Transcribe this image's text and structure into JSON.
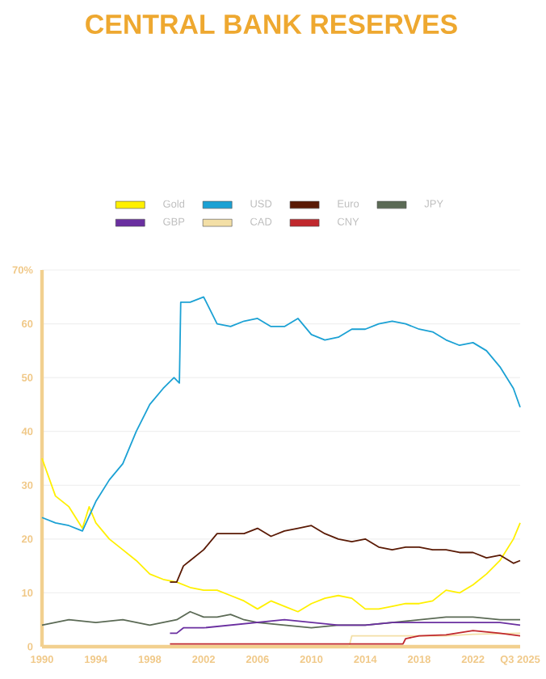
{
  "chart_data": {
    "type": "line",
    "title": "CENTRAL BANK RESERVES",
    "xlim": [
      1990,
      2025.5
    ],
    "ylim": [
      0,
      70
    ],
    "xticks": [
      1990,
      1994,
      1998,
      2002,
      2006,
      2010,
      2014,
      2018,
      2022,
      {
        "value": 2025.5,
        "label": "Q3 2025"
      }
    ],
    "yticks": [
      0,
      10,
      20,
      30,
      40,
      50,
      60,
      {
        "value": 70,
        "label": "70%"
      }
    ],
    "grid": "y",
    "legend": "top",
    "marker": "none",
    "line_style": "solid",
    "series": [
      {
        "name": "Gold",
        "color": "#fff000",
        "x": [
          1990,
          1991,
          1992,
          1993,
          1993.5,
          1994,
          1995,
          1996,
          1997,
          1998,
          1999,
          2000,
          2001,
          2002,
          2003,
          2004,
          2005,
          2006,
          2007,
          2008,
          2009,
          2010,
          2011,
          2012,
          2013,
          2014,
          2015,
          2016,
          2017,
          2018,
          2019,
          2020,
          2021,
          2022,
          2023,
          2024,
          2025,
          2025.5
        ],
        "values": [
          35,
          28,
          26,
          22,
          26,
          23,
          20,
          18,
          16,
          13.5,
          12.5,
          12,
          11,
          10.5,
          10.5,
          9.5,
          8.5,
          7,
          8.5,
          7.5,
          6.5,
          8,
          9,
          9.5,
          9,
          7,
          7,
          7.5,
          8,
          8,
          8.5,
          10.5,
          10,
          11.5,
          13.5,
          16,
          20,
          23
        ]
      },
      {
        "name": "USD",
        "color": "#1ba1d4",
        "x": [
          1990,
          1991,
          1992,
          1993,
          1994,
          1995,
          1996,
          1997,
          1998,
          1999,
          1999.8,
          2000.2,
          2000.3,
          2001,
          2002,
          2003,
          2004,
          2005,
          2006,
          2007,
          2008,
          2009,
          2010,
          2011,
          2012,
          2013,
          2014,
          2015,
          2016,
          2017,
          2018,
          2019,
          2020,
          2021,
          2022,
          2023,
          2024,
          2025,
          2025.5
        ],
        "values": [
          24,
          23,
          22.5,
          21.5,
          27,
          31,
          34,
          40,
          45,
          48,
          50,
          49,
          64,
          64,
          65,
          60,
          59.5,
          60.5,
          61,
          59.5,
          59.5,
          61,
          58,
          57,
          57.5,
          59,
          59,
          60,
          60.5,
          60,
          59,
          58.5,
          57,
          56,
          56.5,
          55,
          52,
          48,
          44.5
        ]
      },
      {
        "name": "Euro",
        "color": "#5a1a05",
        "x": [
          1999.5,
          2000,
          2000.5,
          2001,
          2002,
          2003,
          2004,
          2005,
          2006,
          2007,
          2008,
          2009,
          2010,
          2011,
          2012,
          2013,
          2014,
          2015,
          2016,
          2017,
          2018,
          2019,
          2020,
          2021,
          2022,
          2023,
          2024,
          2025,
          2025.5
        ],
        "values": [
          12,
          12,
          15,
          16,
          18,
          21,
          21,
          21,
          22,
          20.5,
          21.5,
          22,
          22.5,
          21,
          20,
          19.5,
          20,
          18.5,
          18,
          18.5,
          18.5,
          18,
          18,
          17.5,
          17.5,
          16.5,
          17,
          15.5,
          16
        ]
      },
      {
        "name": "JPY",
        "color": "#5b6a55",
        "x": [
          1990,
          1992,
          1994,
          1996,
          1998,
          1999,
          2000,
          2001,
          2002,
          2003,
          2004,
          2005,
          2006,
          2008,
          2010,
          2012,
          2014,
          2016,
          2018,
          2020,
          2022,
          2024,
          2025.5
        ],
        "values": [
          4,
          5,
          4.5,
          5,
          4,
          4.5,
          5,
          6.5,
          5.5,
          5.5,
          6,
          5,
          4.5,
          4,
          3.5,
          4,
          4,
          4.5,
          5,
          5.5,
          5.5,
          5,
          5
        ]
      },
      {
        "name": "GBP",
        "color": "#6a2fa0",
        "x": [
          1999.5,
          2000,
          2000.5,
          2002,
          2004,
          2006,
          2008,
          2010,
          2012,
          2014,
          2016,
          2018,
          2020,
          2022,
          2024,
          2025.5
        ],
        "values": [
          2.5,
          2.5,
          3.5,
          3.5,
          4,
          4.5,
          5,
          4.5,
          4,
          4,
          4.5,
          4.5,
          4.5,
          4.5,
          4.5,
          4
        ]
      },
      {
        "name": "CAD",
        "color": "#f3dfa6",
        "x": [
          2012.8,
          2013,
          2014,
          2016,
          2018,
          2020,
          2022,
          2025.5
        ],
        "values": [
          0,
          2,
          2,
          2,
          2,
          2,
          2.3,
          2.5
        ]
      },
      {
        "name": "CNY",
        "color": "#c0282d",
        "x": [
          1999.5,
          2005,
          2010,
          2016.8,
          2017,
          2018,
          2020,
          2022,
          2024,
          2025.5
        ],
        "values": [
          0.5,
          0.5,
          0.5,
          0.5,
          1.5,
          2,
          2.2,
          3,
          2.5,
          2
        ]
      }
    ]
  }
}
